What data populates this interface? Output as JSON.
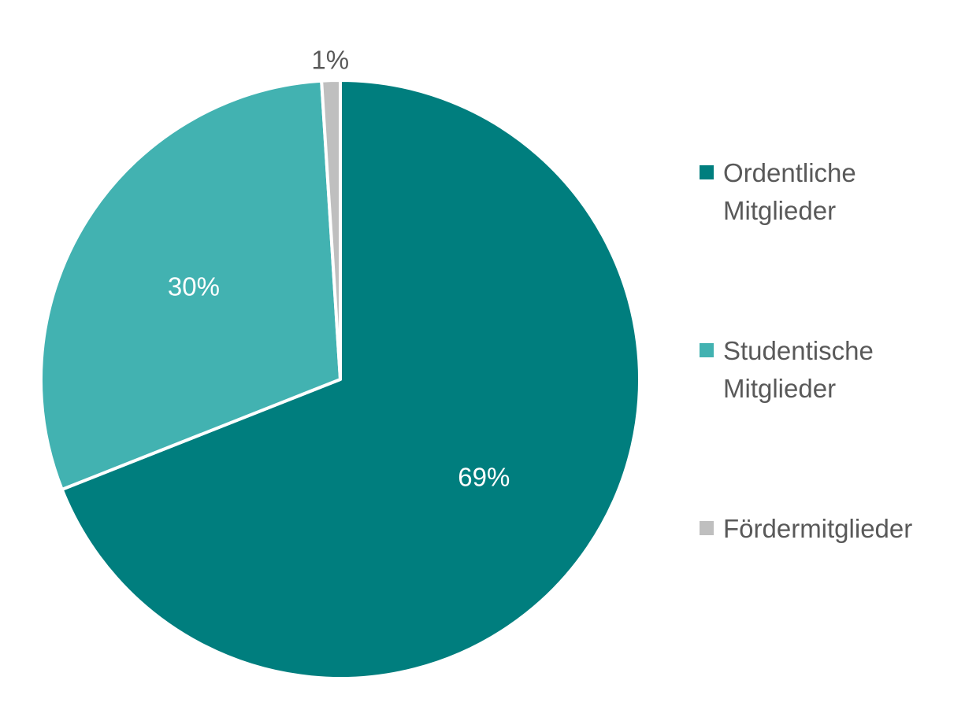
{
  "chart_data": {
    "type": "pie",
    "title": "",
    "start_angle_deg": 0,
    "direction": "clockwise",
    "slices": [
      {
        "label": "Ordentliche Mitglieder",
        "value": 69,
        "data_label": "69%",
        "color": "#007E7E",
        "label_color": "#FFFFFF"
      },
      {
        "label": "Studentische Mitglieder",
        "value": 30,
        "data_label": "30%",
        "color": "#42B2B1",
        "label_color": "#FFFFFF"
      },
      {
        "label": "Fördermitglieder",
        "value": 1,
        "data_label": "1%",
        "color": "#BFBFBF",
        "label_color": "#595959"
      }
    ],
    "legend": {
      "position": "right",
      "items": [
        "Ordentliche Mitglieder",
        "Studentische Mitglieder",
        "Fördermitglieder"
      ]
    }
  }
}
